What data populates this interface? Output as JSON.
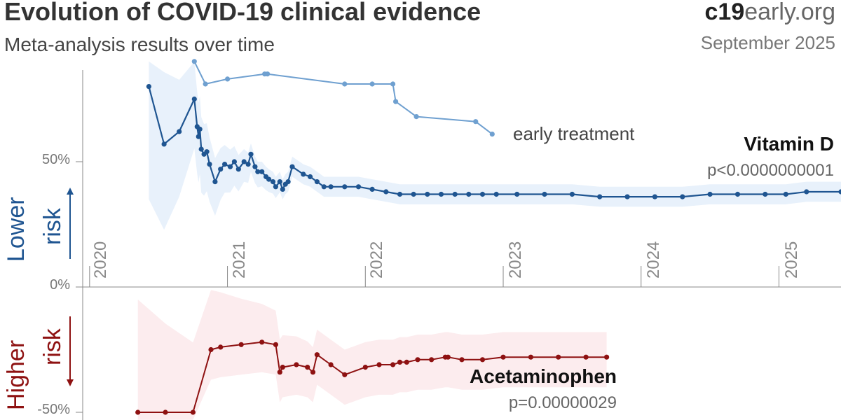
{
  "header": {
    "title": "Evolution of COVID-19 clinical evidence",
    "subtitle": "Meta-analysis results over time",
    "brand_bold": "c19",
    "brand_rest": "early.org",
    "date": "September 2025"
  },
  "labels": {
    "lower_line1": "Lower",
    "lower_line2": "risk",
    "higher_line1": "Higher",
    "higher_line2": "risk",
    "early_treatment": "early treatment"
  },
  "colors": {
    "vitd": "#1f5591",
    "vitd_early": "#6fa0d0",
    "vitd_band": "#e8f1fb",
    "acet": "#8e1111",
    "acet_band": "#fcecee",
    "axis": "#888888"
  },
  "chart_data": {
    "type": "line",
    "title": "Evolution of COVID-19 clinical evidence",
    "subtitle": "Meta-analysis results over time",
    "x_unit": "year",
    "xlim": [
      2019.95,
      2025.45
    ],
    "ylim": [
      -50,
      90
    ],
    "y_ticks": [
      {
        "value": 50,
        "label": "50%"
      },
      {
        "value": 0,
        "label": "0%"
      },
      {
        "value": -50,
        "label": "-50%"
      }
    ],
    "x_ticks": [
      2020,
      2021,
      2022,
      2023,
      2024,
      2025
    ],
    "x_tick_labels": [
      "2020",
      "2021",
      "2022",
      "2023",
      "2024",
      "2025"
    ],
    "series": [
      {
        "name": "Vitamin D",
        "p_value": "p<0.0000000001",
        "points": [
          [
            2020.43,
            80
          ],
          [
            2020.54,
            57
          ],
          [
            2020.65,
            62
          ],
          [
            2020.76,
            75
          ],
          [
            2020.78,
            64
          ],
          [
            2020.79,
            60
          ],
          [
            2020.8,
            63
          ],
          [
            2020.81,
            55
          ],
          [
            2020.83,
            53
          ],
          [
            2020.85,
            54
          ],
          [
            2020.87,
            49
          ],
          [
            2020.91,
            42
          ],
          [
            2020.95,
            47
          ],
          [
            2020.98,
            49
          ],
          [
            2021.02,
            48
          ],
          [
            2021.05,
            50
          ],
          [
            2021.08,
            47
          ],
          [
            2021.12,
            50
          ],
          [
            2021.15,
            49
          ],
          [
            2021.17,
            53
          ],
          [
            2021.2,
            48
          ],
          [
            2021.22,
            46
          ],
          [
            2021.25,
            46
          ],
          [
            2021.28,
            44
          ],
          [
            2021.3,
            43
          ],
          [
            2021.33,
            42
          ],
          [
            2021.35,
            40
          ],
          [
            2021.38,
            42
          ],
          [
            2021.4,
            39
          ],
          [
            2021.42,
            41
          ],
          [
            2021.44,
            42
          ],
          [
            2021.47,
            48
          ],
          [
            2021.55,
            45
          ],
          [
            2021.6,
            44
          ],
          [
            2021.65,
            42
          ],
          [
            2021.7,
            40
          ],
          [
            2021.75,
            40
          ],
          [
            2021.85,
            40
          ],
          [
            2021.95,
            40
          ],
          [
            2022.05,
            39
          ],
          [
            2022.15,
            38
          ],
          [
            2022.25,
            37
          ],
          [
            2022.35,
            37
          ],
          [
            2022.45,
            37
          ],
          [
            2022.55,
            37
          ],
          [
            2022.65,
            37
          ],
          [
            2022.75,
            37
          ],
          [
            2022.85,
            37
          ],
          [
            2022.95,
            37
          ],
          [
            2023.1,
            37
          ],
          [
            2023.3,
            37
          ],
          [
            2023.5,
            37
          ],
          [
            2023.7,
            36
          ],
          [
            2023.9,
            36
          ],
          [
            2024.1,
            36
          ],
          [
            2024.3,
            36
          ],
          [
            2024.5,
            37
          ],
          [
            2024.7,
            37
          ],
          [
            2024.9,
            37
          ],
          [
            2025.05,
            37
          ],
          [
            2025.2,
            38
          ],
          [
            2025.45,
            38
          ]
        ]
      },
      {
        "name": "Vitamin D early treatment",
        "points": [
          [
            2020.76,
            90
          ],
          [
            2020.84,
            81
          ],
          [
            2021.0,
            83
          ],
          [
            2021.27,
            85
          ],
          [
            2021.29,
            85
          ],
          [
            2021.85,
            81
          ],
          [
            2022.05,
            81
          ],
          [
            2022.2,
            81
          ],
          [
            2022.22,
            74
          ],
          [
            2022.37,
            68
          ],
          [
            2022.8,
            66
          ],
          [
            2022.92,
            61
          ]
        ]
      },
      {
        "name": "Acetaminophen",
        "p_value": "p=0.00000029",
        "points": [
          [
            2020.35,
            -50
          ],
          [
            2020.55,
            -50
          ],
          [
            2020.75,
            -50
          ],
          [
            2020.88,
            -25
          ],
          [
            2020.95,
            -24
          ],
          [
            2021.1,
            -23
          ],
          [
            2021.25,
            -22
          ],
          [
            2021.35,
            -23
          ],
          [
            2021.38,
            -34
          ],
          [
            2021.4,
            -32
          ],
          [
            2021.5,
            -31
          ],
          [
            2021.58,
            -32
          ],
          [
            2021.62,
            -34
          ],
          [
            2021.65,
            -27
          ],
          [
            2021.75,
            -31
          ],
          [
            2021.85,
            -35
          ],
          [
            2022.0,
            -32
          ],
          [
            2022.1,
            -31
          ],
          [
            2022.2,
            -31
          ],
          [
            2022.25,
            -30
          ],
          [
            2022.3,
            -30
          ],
          [
            2022.38,
            -29
          ],
          [
            2022.48,
            -29
          ],
          [
            2022.58,
            -28
          ],
          [
            2022.6,
            -28
          ],
          [
            2022.7,
            -29
          ],
          [
            2022.85,
            -29
          ],
          [
            2023.0,
            -28
          ],
          [
            2023.2,
            -28
          ],
          [
            2023.4,
            -28
          ],
          [
            2023.6,
            -28
          ],
          [
            2023.75,
            -28
          ]
        ]
      }
    ],
    "grid": false,
    "legend": "inline-labels"
  }
}
